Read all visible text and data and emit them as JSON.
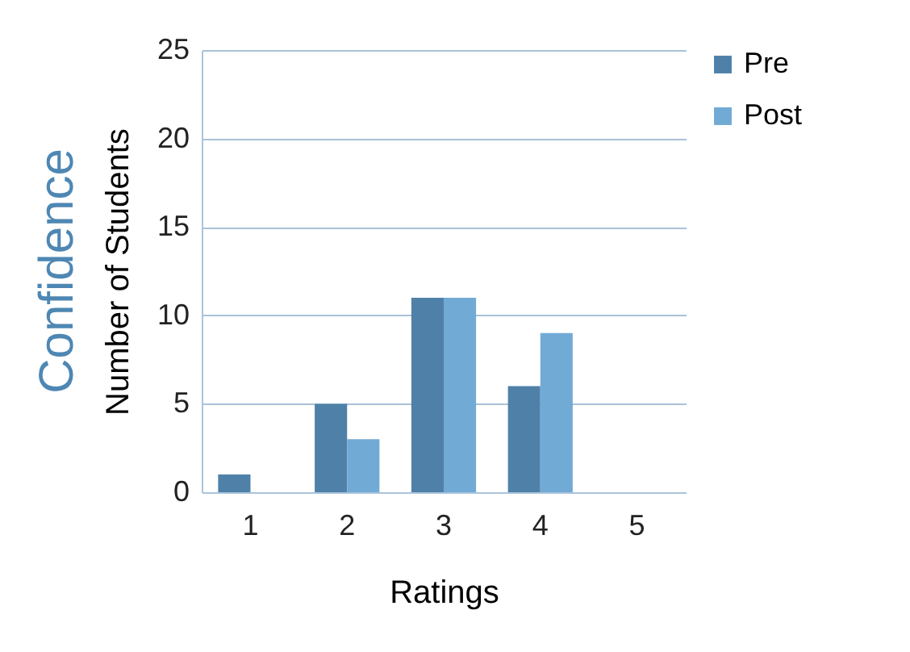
{
  "chart_data": {
    "type": "bar",
    "title": "Confidence",
    "xlabel": "Ratings",
    "ylabel": "Number of Students",
    "categories": [
      "1",
      "2",
      "3",
      "4",
      "5"
    ],
    "series": [
      {
        "name": "Pre",
        "color": "#4f81a8",
        "values": [
          1,
          5,
          11,
          6,
          0
        ]
      },
      {
        "name": "Post",
        "color": "#72aad6",
        "values": [
          0,
          3,
          11,
          9,
          0
        ]
      }
    ],
    "ylim": [
      0,
      25
    ],
    "yticks": [
      0,
      5,
      10,
      15,
      20,
      25
    ],
    "grid": "y",
    "legend": "right"
  }
}
